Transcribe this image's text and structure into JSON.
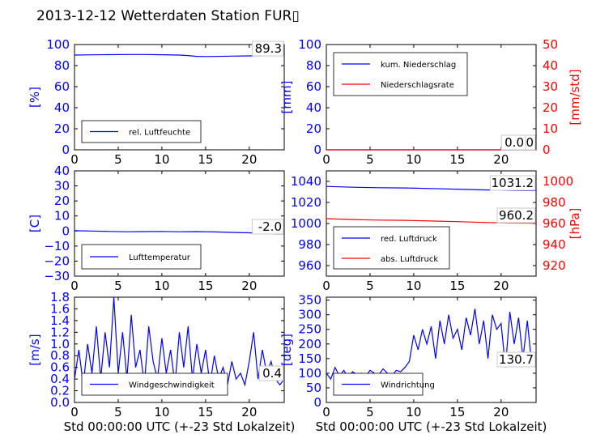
{
  "title": "2013-12-12 Wetterdaten Station FUR",
  "title_glyph": "▯",
  "colors": {
    "blue": "#0000ff",
    "red": "#ff0000",
    "black": "#000000"
  },
  "chart_data": [
    {
      "type": "line",
      "ylabel": "[%]",
      "xlim": [
        0,
        24
      ],
      "ylim": [
        0,
        100
      ],
      "xticks": [
        "0",
        "5",
        "10",
        "15",
        "20"
      ],
      "yticks": [
        "0",
        "20",
        "40",
        "60",
        "80",
        "100"
      ],
      "grid": false,
      "legend_placement": "lower-left",
      "annotation": "89.3",
      "series": [
        {
          "name": "rel. Luftfeuchte",
          "color": "#0000ff",
          "x": [
            0,
            2,
            4,
            6,
            8,
            10,
            12,
            13,
            14,
            15,
            16,
            18,
            20,
            22,
            24
          ],
          "values": [
            90.0,
            90.2,
            90.4,
            90.5,
            90.5,
            90.3,
            90.0,
            89.5,
            88.8,
            88.6,
            88.7,
            89.0,
            89.2,
            89.3,
            89.3
          ]
        }
      ]
    },
    {
      "type": "line",
      "ylabel": "[mm]",
      "ylabel_right": "[mm/std]",
      "xlim": [
        0,
        24
      ],
      "ylim": [
        0,
        100
      ],
      "ylim_right": [
        0,
        50
      ],
      "xticks": [
        "0",
        "5",
        "10",
        "15",
        "20"
      ],
      "yticks": [
        "0",
        "20",
        "40",
        "60",
        "80",
        "100"
      ],
      "yticks_right": [
        "0",
        "10",
        "20",
        "30",
        "40",
        "50"
      ],
      "grid": false,
      "legend_placement": "upper-left",
      "annotation": "0.0",
      "annotation_2": "0.0",
      "series": [
        {
          "name": "kum. Niederschlag",
          "color": "#0000ff",
          "x": [
            0,
            24
          ],
          "values": [
            0,
            0
          ]
        },
        {
          "name": "Niederschlagsrate",
          "color": "#ff0000",
          "axis": "right",
          "x": [
            0,
            24
          ],
          "values": [
            0,
            0
          ]
        }
      ]
    },
    {
      "type": "line",
      "ylabel": "[C]",
      "xlim": [
        0,
        24
      ],
      "ylim": [
        -30,
        40
      ],
      "xticks": [
        "0",
        "5",
        "10",
        "15",
        "20"
      ],
      "yticks": [
        "−30",
        "−20",
        "−10",
        "0",
        "10",
        "20",
        "30",
        "40"
      ],
      "grid": false,
      "legend_placement": "lower-left",
      "annotation": "-2.0",
      "series": [
        {
          "name": "Lufttemperatur",
          "color": "#0000ff",
          "x": [
            0,
            2,
            4,
            6,
            8,
            10,
            12,
            14,
            16,
            18,
            20,
            21,
            22,
            23,
            24
          ],
          "values": [
            0.2,
            0.0,
            -0.3,
            -0.5,
            -0.4,
            -0.3,
            -0.5,
            -0.4,
            -0.6,
            -0.9,
            -1.2,
            -1.5,
            -1.8,
            -2.0,
            -2.0
          ]
        }
      ]
    },
    {
      "type": "line",
      "ylabel_right": "[hPa]",
      "xlim": [
        0,
        24
      ],
      "ylim": [
        950,
        1050
      ],
      "ylim_right": [
        910,
        1010
      ],
      "xticks": [
        "0",
        "5",
        "10",
        "15",
        "20"
      ],
      "yticks": [
        "960",
        "980",
        "1000",
        "1020",
        "1040"
      ],
      "yticks_right": [
        "920",
        "940",
        "960",
        "980",
        "1000"
      ],
      "grid": false,
      "legend_placement": "lower-left",
      "annotation": "1031.2",
      "annotation_2": "960.2",
      "series": [
        {
          "name": "red. Luftdruck",
          "color": "#0000ff",
          "x": [
            0,
            3,
            6,
            9,
            12,
            15,
            18,
            21,
            24
          ],
          "values": [
            1035.2,
            1034.5,
            1034.0,
            1033.8,
            1033.2,
            1032.6,
            1031.9,
            1031.4,
            1031.2
          ]
        },
        {
          "name": "abs. Luftdruck",
          "color": "#ff0000",
          "axis": "right",
          "x": [
            0,
            3,
            6,
            9,
            12,
            15,
            18,
            21,
            24
          ],
          "values": [
            964.6,
            963.8,
            963.2,
            963.0,
            962.4,
            961.8,
            961.0,
            960.5,
            960.2
          ]
        }
      ]
    },
    {
      "type": "line",
      "ylabel": "[m/s]",
      "xlabel": "Std 00:00:00 UTC (+-23 Std Lokalzeit)",
      "xlim": [
        0,
        24
      ],
      "ylim": [
        0.0,
        1.8
      ],
      "xticks": [
        "0",
        "5",
        "10",
        "15",
        "20"
      ],
      "yticks": [
        "0.0",
        "0.2",
        "0.4",
        "0.6",
        "0.8",
        "1.0",
        "1.2",
        "1.4",
        "1.6",
        "1.8"
      ],
      "grid": false,
      "legend_placement": "lower-left",
      "annotation": "0.4",
      "series": [
        {
          "name": "Windgeschwindigkeit",
          "color": "#0000ff",
          "x": [
            0,
            0.5,
            1,
            1.5,
            2,
            2.5,
            3,
            3.5,
            4,
            4.5,
            5,
            5.5,
            6,
            6.5,
            7,
            7.5,
            8,
            8.5,
            9,
            9.5,
            10,
            10.5,
            11,
            11.5,
            12,
            12.5,
            13,
            13.5,
            14,
            14.5,
            15,
            15.5,
            16,
            16.5,
            17,
            17.5,
            18,
            18.5,
            19,
            19.5,
            20,
            20.5,
            21,
            21.5,
            22,
            22.5,
            23,
            23.5,
            24
          ],
          "values": [
            0.4,
            0.9,
            0.3,
            1.0,
            0.5,
            1.3,
            0.4,
            1.2,
            0.6,
            1.8,
            0.5,
            1.2,
            0.4,
            1.5,
            0.6,
            0.9,
            0.3,
            1.3,
            0.7,
            0.4,
            1.1,
            0.5,
            0.9,
            0.3,
            1.2,
            0.6,
            1.3,
            0.4,
            1.0,
            0.5,
            0.9,
            0.3,
            0.8,
            0.4,
            0.6,
            0.3,
            0.7,
            0.4,
            0.5,
            0.3,
            0.7,
            1.2,
            0.4,
            0.9,
            0.5,
            0.7,
            0.4,
            0.3,
            0.4
          ]
        }
      ]
    },
    {
      "type": "line",
      "ylabel": "[deg]",
      "xlabel": "Std 00:00:00 UTC (+-23 Std Lokalzeit)",
      "xlim": [
        0,
        24
      ],
      "ylim": [
        0,
        360
      ],
      "xticks": [
        "0",
        "5",
        "10",
        "15",
        "20"
      ],
      "yticks": [
        "0",
        "50",
        "100",
        "150",
        "200",
        "250",
        "300",
        "350"
      ],
      "grid": false,
      "legend_placement": "lower-left",
      "annotation": "130.7",
      "series": [
        {
          "name": "Windrichtung",
          "color": "#0000ff",
          "x": [
            0,
            0.5,
            1,
            1.5,
            2,
            2.5,
            3,
            3.5,
            4,
            4.5,
            5,
            5.5,
            6,
            6.5,
            7,
            7.5,
            8,
            8.5,
            9,
            9.5,
            10,
            10.5,
            11,
            11.5,
            12,
            12.5,
            13,
            13.5,
            14,
            14.5,
            15,
            15.5,
            16,
            16.5,
            17,
            17.5,
            18,
            18.5,
            19,
            19.5,
            20,
            20.5,
            21,
            21.5,
            22,
            22.5,
            23,
            23.5,
            24
          ],
          "values": [
            100,
            80,
            120,
            90,
            110,
            85,
            105,
            95,
            100,
            90,
            110,
            100,
            95,
            115,
            100,
            90,
            110,
            105,
            120,
            140,
            230,
            180,
            250,
            200,
            260,
            150,
            280,
            200,
            300,
            220,
            250,
            180,
            290,
            230,
            320,
            200,
            280,
            150,
            300,
            250,
            270,
            120,
            310,
            200,
            290,
            150,
            280,
            130,
            131
          ]
        }
      ]
    }
  ]
}
